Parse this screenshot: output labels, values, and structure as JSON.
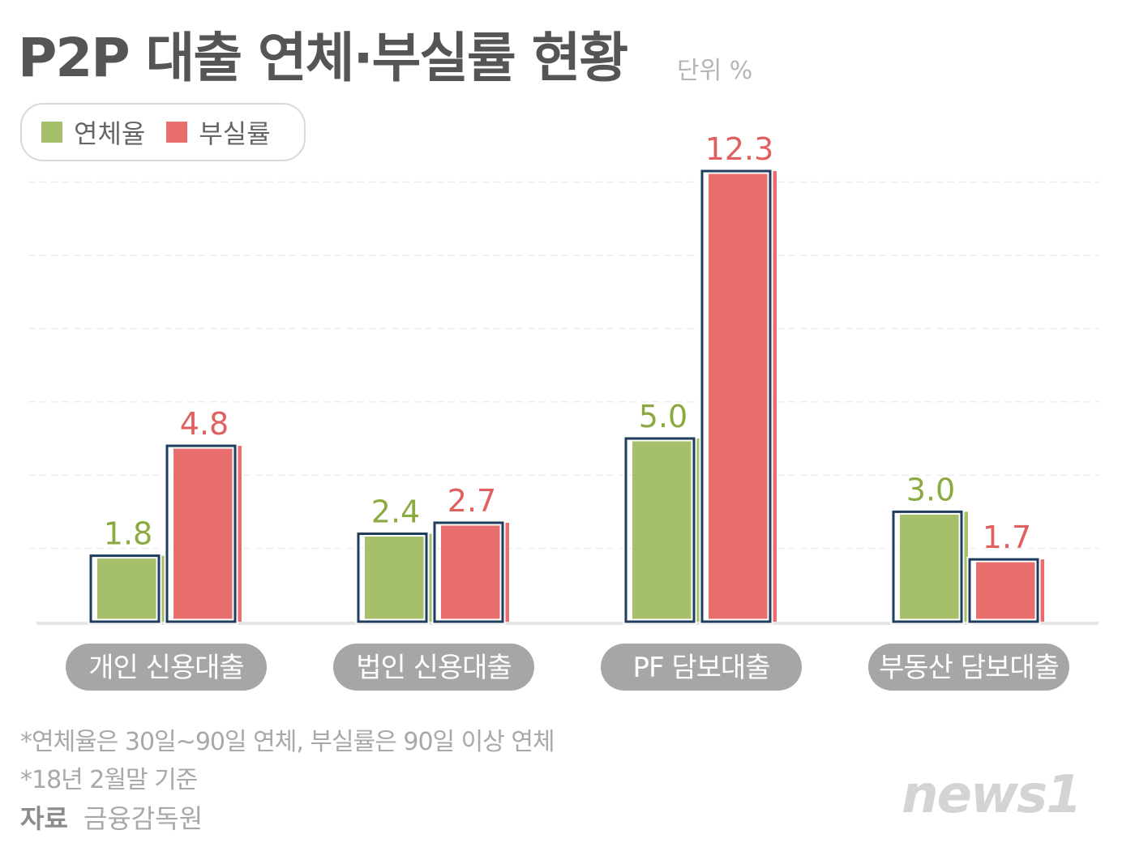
{
  "header": {
    "title": "P2P 대출 연체·부실률 현황",
    "unit": "단위 %"
  },
  "colors": {
    "overdue": "#a5bf6b",
    "default": "#e96e6e",
    "outline": "#1f3e5e",
    "overdue_text": "#8caa42",
    "default_text": "#e05f5f",
    "category_pill": "#a6a6a6"
  },
  "chart_data": {
    "type": "bar",
    "categories": [
      "개인 신용대출",
      "법인 신용대출",
      "PF 담보대출",
      "부동산 담보대출"
    ],
    "series": [
      {
        "name": "연체율",
        "values": [
          1.8,
          2.4,
          5.0,
          3.0
        ],
        "labels": [
          "1.8",
          "2.4",
          "5.0",
          "3.0"
        ]
      },
      {
        "name": "부실률",
        "values": [
          4.8,
          2.7,
          12.3,
          1.7
        ],
        "labels": [
          "4.8",
          "2.7",
          "12.3",
          "1.7"
        ]
      }
    ],
    "ylim": [
      0,
      12
    ],
    "grid": true,
    "legend_position": "top-left"
  },
  "footnotes": {
    "note1": "*연체율은 30일~90일 연체, 부실률은 90일 이상 연체",
    "note2": "*18년 2월말 기준",
    "source_label": "자료",
    "source_value": "금융감독원"
  },
  "logo": {
    "text": "news1"
  }
}
